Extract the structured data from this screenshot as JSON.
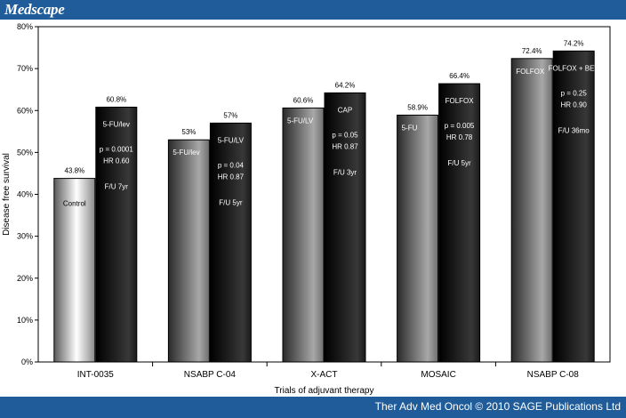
{
  "brand": {
    "logo": "Medscape"
  },
  "footer": {
    "credit": "Ther Adv Med Oncol © 2010 SAGE Publications Ltd"
  },
  "colors": {
    "header_bar": "#1f5c99",
    "footer_bar": "#1f5c99"
  },
  "chart_data": {
    "type": "bar",
    "xlabel": "Trials of adjuvant therapy",
    "ylabel": "Disease free survival",
    "ylim": [
      0,
      80
    ],
    "yticks": [
      "0%",
      "10%",
      "20%",
      "30%",
      "40%",
      "50%",
      "60%",
      "70%",
      "80%"
    ],
    "grid": false,
    "legend": "none",
    "categories": [
      "INT-0035",
      "NSABP C-04",
      "X-ACT",
      "MOSAIC",
      "NSABP C-08"
    ],
    "groups": [
      {
        "category": "INT-0035",
        "bars": [
          {
            "value": 43.8,
            "label": "43.8%",
            "arm": "Control",
            "notes": []
          },
          {
            "value": 60.8,
            "label": "60.8%",
            "arm": "5-FU/lev",
            "notes": [
              "p = 0.0001",
              "HR 0.60",
              "F/U 7yr"
            ]
          }
        ]
      },
      {
        "category": "NSABP C-04",
        "bars": [
          {
            "value": 53,
            "label": "53%",
            "arm": "5-FU/lev",
            "notes": []
          },
          {
            "value": 57,
            "label": "57%",
            "arm": "5-FU/LV",
            "notes": [
              "p = 0.04",
              "HR 0.87",
              "F/U 5yr"
            ]
          }
        ]
      },
      {
        "category": "X-ACT",
        "bars": [
          {
            "value": 60.6,
            "label": "60.6%",
            "arm": "5-FU/LV",
            "notes": []
          },
          {
            "value": 64.2,
            "label": "64.2%",
            "arm": "CAP",
            "notes": [
              "p = 0.05",
              "HR 0.87",
              "F/U 3yr"
            ]
          }
        ]
      },
      {
        "category": "MOSAIC",
        "bars": [
          {
            "value": 58.9,
            "label": "58.9%",
            "arm": "5-FU",
            "notes": []
          },
          {
            "value": 66.4,
            "label": "66.4%",
            "arm": "FOLFOX",
            "notes": [
              "p = 0.005",
              "HR 0.78",
              "F/U 5yr"
            ]
          }
        ]
      },
      {
        "category": "NSABP C-08",
        "bars": [
          {
            "value": 72.4,
            "label": "72.4%",
            "arm": "FOLFOX",
            "notes": []
          },
          {
            "value": 74.2,
            "label": "74.2%",
            "arm": "FOLFOX + BEV",
            "notes": [
              "p = 0.25",
              "HR 0.90",
              "F/U 36mo"
            ]
          }
        ]
      }
    ]
  }
}
